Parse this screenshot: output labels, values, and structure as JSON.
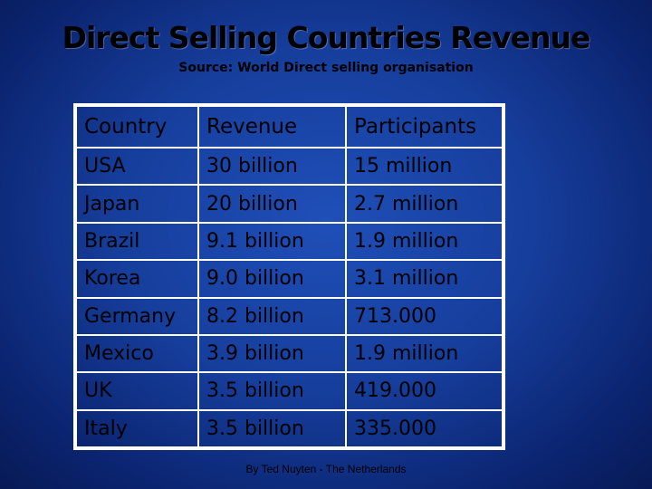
{
  "title": "Direct Selling Countries Revenue",
  "subtitle": "Source: World Direct selling organisation",
  "table": {
    "headers": [
      "Country",
      "Revenue",
      "Participants"
    ],
    "rows": [
      [
        "USA",
        "30 billion",
        "15 million"
      ],
      [
        "Japan",
        "20 billion",
        "2.7 million"
      ],
      [
        "Brazil",
        "9.1 billion",
        "1.9 million"
      ],
      [
        "Korea",
        "9.0 billion",
        "3.1 million"
      ],
      [
        "Germany",
        "8.2 billion",
        "713.000"
      ],
      [
        "Mexico",
        "3.9 billion",
        "1.9 million"
      ],
      [
        "UK",
        "3.5 billion",
        "419.000"
      ],
      [
        "Italy",
        "3.5 billion",
        "335.000"
      ]
    ]
  },
  "footer": "By Ted Nuyten - The Netherlands",
  "colors": {
    "background": "#163e9c",
    "grid_lines": "#ffffff",
    "text": "#000000"
  }
}
